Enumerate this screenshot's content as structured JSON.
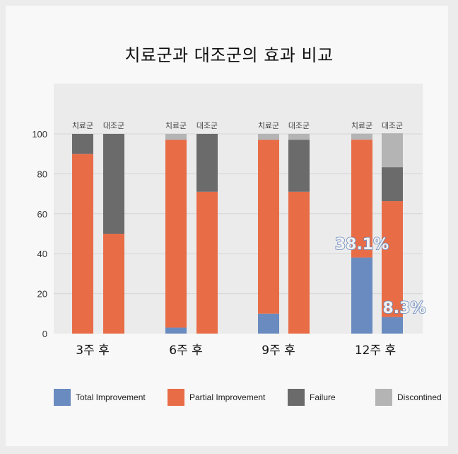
{
  "chart_data": {
    "type": "bar",
    "stacked": true,
    "title": "치료군과 대조군의 효과 비교",
    "groups": [
      "3주 후",
      "6주 후",
      "9주 후",
      "12주 후"
    ],
    "bar_labels": [
      "치료군",
      "대조군"
    ],
    "ylim": [
      0,
      100
    ],
    "yticks": [
      0,
      20,
      40,
      60,
      80,
      100
    ],
    "grid": true,
    "legend_position": "bottom",
    "series": [
      {
        "name": "Total Improvement",
        "color": "#6a8bbf",
        "values": {
          "치료군": [
            0,
            3,
            10,
            38.1
          ],
          "대조군": [
            0,
            0,
            0,
            8.3
          ]
        }
      },
      {
        "name": "Partial Improvement",
        "color": "#e86d47",
        "values": {
          "치료군": [
            90,
            94,
            87,
            59
          ],
          "대조군": [
            50,
            71,
            71,
            58
          ]
        }
      },
      {
        "name": "Failure",
        "color": "#6b6b6b",
        "values": {
          "치료군": [
            10,
            0,
            0,
            0
          ],
          "대조군": [
            50,
            29,
            26,
            17
          ]
        }
      },
      {
        "name": "Discontined",
        "color": "#b4b4b4",
        "values": {
          "치료군": [
            0,
            3,
            3,
            3
          ],
          "대조군": [
            0,
            0,
            3,
            17
          ]
        }
      }
    ],
    "annotations": [
      "38.1%",
      "8.3%"
    ],
    "annotation_color": "#6a8bbf"
  }
}
